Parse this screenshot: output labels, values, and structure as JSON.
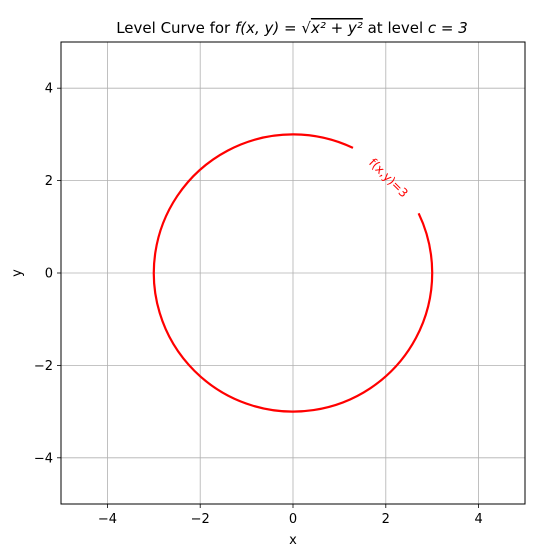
{
  "chart_data": {
    "type": "line",
    "title": {
      "prefix": "Level Curve for ",
      "fxy": "f(x, y) = ",
      "radicand": "x² + y²",
      "middle": " at level ",
      "level": "c = 3"
    },
    "xlabel": "x",
    "ylabel": "y",
    "xlim": [
      -5,
      5
    ],
    "ylim": [
      -5,
      5
    ],
    "xticks": [
      -4,
      -2,
      0,
      2,
      4
    ],
    "yticks": [
      -4,
      -2,
      0,
      2,
      4
    ],
    "xtick_labels": [
      "−4",
      "−2",
      "0",
      "2",
      "4"
    ],
    "ytick_labels": [
      "−4",
      "−2",
      "0",
      "2",
      "4"
    ],
    "grid": true,
    "series": [
      {
        "level": 3,
        "shape": "circle",
        "center": [
          0,
          0
        ],
        "radius": 3,
        "color": "#ff0000"
      }
    ],
    "annotations": [
      {
        "text": "f(x,y)=3",
        "x": 2.05,
        "y": 2.05,
        "color": "#ff0000"
      }
    ]
  }
}
